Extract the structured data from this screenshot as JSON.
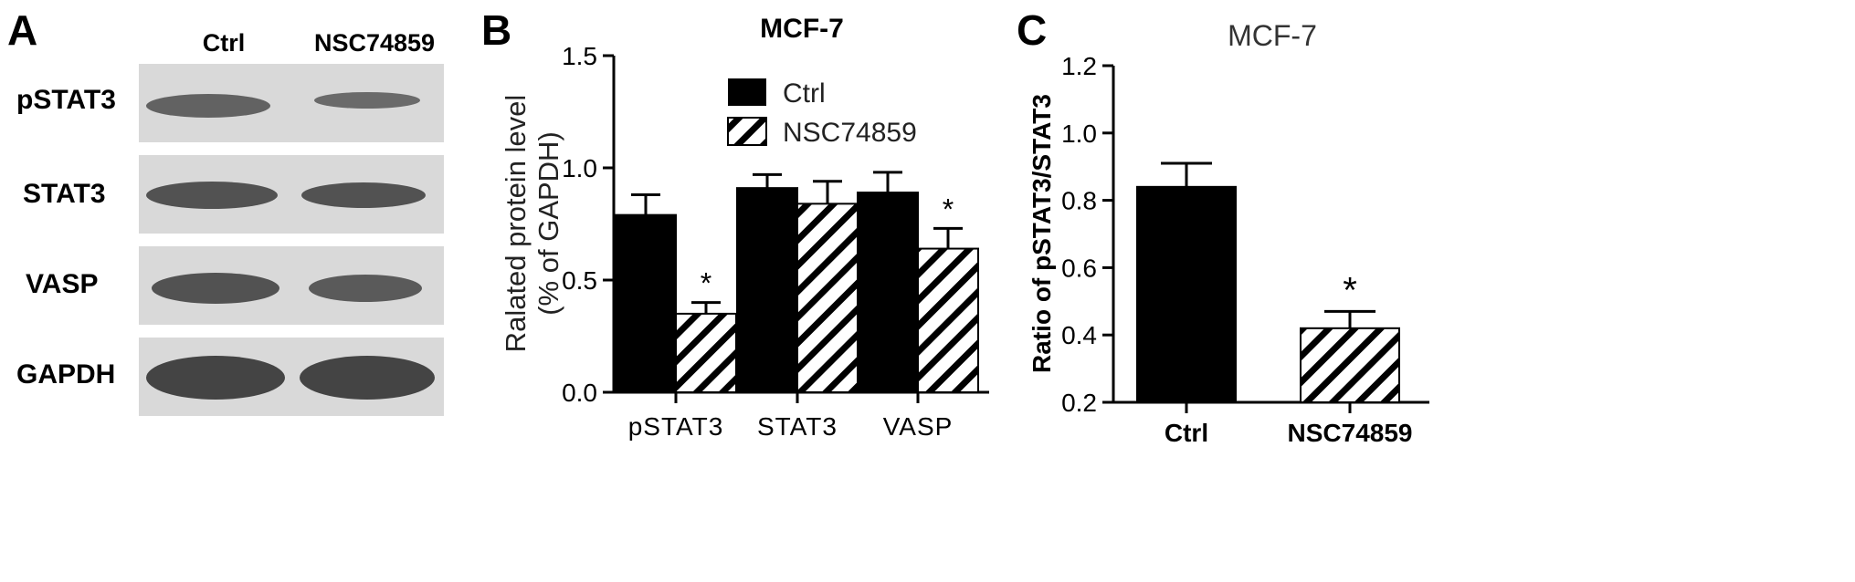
{
  "panels": {
    "a": {
      "letter": "A",
      "lanes": [
        "Ctrl",
        "NSC74859"
      ],
      "rows": [
        {
          "label": "pSTAT3",
          "band_intensity": [
            0.7,
            0.55
          ]
        },
        {
          "label": "STAT3",
          "band_intensity": [
            0.8,
            0.8
          ]
        },
        {
          "label": "VASP",
          "band_intensity": [
            0.8,
            0.75
          ]
        },
        {
          "label": "GAPDH",
          "band_intensity": [
            0.9,
            0.9
          ]
        }
      ]
    },
    "b": {
      "letter": "B"
    },
    "c": {
      "letter": "C"
    }
  },
  "colors": {
    "ctrl_fill": "#000000",
    "treated_hatch": "#000000",
    "axis": "#000000",
    "blot_bg": "#d9d9d9",
    "band": "#3a3a3a"
  },
  "chart_data": [
    {
      "type": "bar",
      "title": "MCF-7",
      "ylabel": "Ralated protein level (% of GAPDH)",
      "ylabel_lines": [
        "Ralated protein level",
        "(% of GAPDH)"
      ],
      "categories": [
        "pSTAT3",
        "STAT3",
        "VASP"
      ],
      "series": [
        {
          "name": "Ctrl",
          "values": [
            0.79,
            0.91,
            0.89
          ],
          "errors": [
            0.09,
            0.06,
            0.09
          ],
          "pattern": "solid"
        },
        {
          "name": "NSC74859",
          "values": [
            0.35,
            0.84,
            0.64
          ],
          "errors": [
            0.05,
            0.1,
            0.09
          ],
          "pattern": "hatch"
        }
      ],
      "significance": [
        "*",
        "",
        "*"
      ],
      "ylim": [
        0.0,
        1.5
      ],
      "yticks": [
        "0.0",
        "0.5",
        "1.0",
        "1.5"
      ],
      "legend": "top-center",
      "grid": false
    },
    {
      "type": "bar",
      "title": "MCF-7",
      "ylabel": "Ratio of pSTAT3/STAT3",
      "categories": [
        "Ctrl",
        "NSC74859"
      ],
      "values": [
        0.84,
        0.42
      ],
      "errors": [
        0.07,
        0.05
      ],
      "patterns": [
        "solid",
        "hatch"
      ],
      "significance": [
        "",
        "*"
      ],
      "ylim": [
        0.2,
        1.2
      ],
      "yticks": [
        "0.2",
        "0.4",
        "0.6",
        "0.8",
        "1.0",
        "1.2"
      ],
      "grid": false
    }
  ]
}
